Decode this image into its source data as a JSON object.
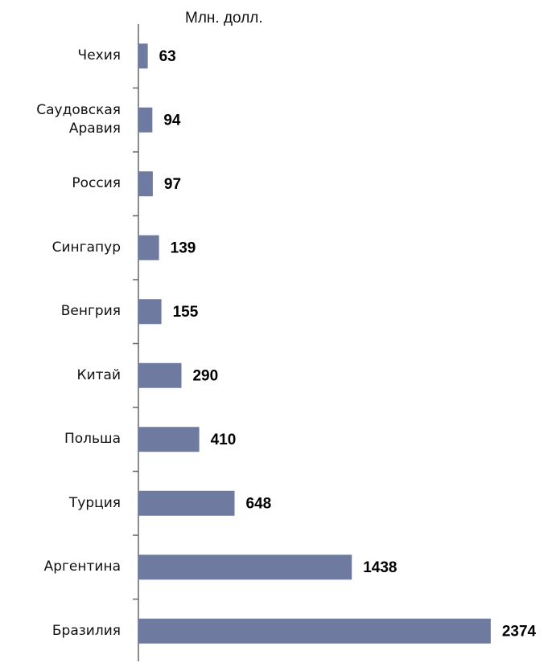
{
  "chart_data": {
    "type": "barh",
    "title": "Млн. долл.",
    "categories": [
      "Чехия",
      "Саудовская Аравия",
      "Россия",
      "Сингапур",
      "Венгрия",
      "Китай",
      "Польша",
      "Турция",
      "Аргентина",
      "Бразилия"
    ],
    "values": [
      63,
      94,
      97,
      139,
      155,
      290,
      410,
      648,
      1438,
      2374
    ],
    "color": "#6e7aa0",
    "xlim": [
      0,
      2700
    ]
  }
}
